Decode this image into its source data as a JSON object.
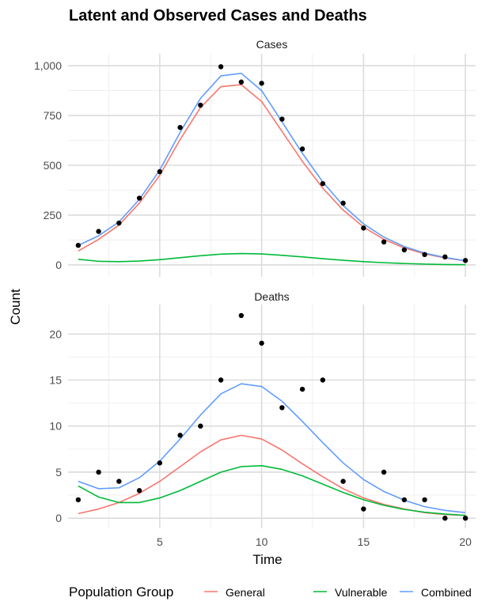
{
  "chart_data": {
    "type": "line",
    "title": "Latent and Observed Cases and Deaths",
    "xlabel": "Time",
    "ylabel": "Count",
    "xlim": [
      0.5,
      20.5
    ],
    "x_ticks": [
      5,
      10,
      15,
      20
    ],
    "x_tick_labels": [
      "5",
      "10",
      "15",
      "20"
    ],
    "x": [
      1,
      2,
      3,
      4,
      5,
      6,
      7,
      8,
      9,
      10,
      11,
      12,
      13,
      14,
      15,
      16,
      17,
      18,
      19,
      20
    ],
    "legend": {
      "title": "Population Group",
      "position": "bottom",
      "entries": [
        {
          "name": "General",
          "color": "#F8766D"
        },
        {
          "name": "Vulnerable",
          "color": "#00BA38"
        },
        {
          "name": "Combined",
          "color": "#619CFF"
        }
      ]
    },
    "panels": [
      {
        "name": "Cases",
        "ylim": [
          -60,
          1060
        ],
        "y_ticks": [
          0,
          250,
          500,
          750,
          1000
        ],
        "y_tick_labels": [
          "0",
          "250",
          "500",
          "750",
          "1,000"
        ],
        "series": [
          {
            "name": "General",
            "values": [
              70,
              128,
              200,
              310,
              450,
              630,
              790,
              895,
              905,
              820,
              670,
              520,
              385,
              275,
              190,
              128,
              85,
              55,
              35,
              20
            ]
          },
          {
            "name": "Vulnerable",
            "values": [
              28,
              18,
              16,
              19,
              26,
              36,
              46,
              54,
              57,
              55,
              48,
              40,
              31,
              23,
              16,
              11,
              7,
              4,
              2,
              1
            ]
          },
          {
            "name": "Combined",
            "values": [
              98,
              146,
              216,
              329,
              476,
              666,
              836,
              949,
              962,
              875,
              718,
              560,
              416,
              298,
              206,
              139,
              92,
              59,
              37,
              21
            ]
          }
        ],
        "observed": [
          98,
          168,
          210,
          335,
          468,
          690,
          802,
          995,
          918,
          912,
          732,
          582,
          408,
          310,
          185,
          115,
          75,
          52,
          40,
          22
        ]
      },
      {
        "name": "Deaths",
        "ylim": [
          -1.1,
          23.2
        ],
        "y_ticks": [
          0,
          5,
          10,
          15,
          20
        ],
        "y_tick_labels": [
          "0",
          "5",
          "10",
          "15",
          "20"
        ],
        "series": [
          {
            "name": "General",
            "values": [
              0.5,
              1.0,
              1.7,
              2.7,
              4.0,
              5.6,
              7.2,
              8.5,
              9.0,
              8.6,
              7.4,
              5.9,
              4.5,
              3.2,
              2.2,
              1.5,
              1.0,
              0.6,
              0.4,
              0.3
            ]
          },
          {
            "name": "Vulnerable",
            "values": [
              3.5,
              2.3,
              1.7,
              1.7,
              2.2,
              3.0,
              4.0,
              5.0,
              5.6,
              5.7,
              5.3,
              4.6,
              3.7,
              2.8,
              2.0,
              1.4,
              0.95,
              0.65,
              0.45,
              0.3
            ]
          },
          {
            "name": "Combined",
            "values": [
              4.0,
              3.2,
              3.3,
              4.4,
              6.2,
              8.6,
              11.2,
              13.5,
              14.6,
              14.3,
              12.7,
              10.5,
              8.2,
              6.0,
              4.2,
              2.9,
              1.95,
              1.25,
              0.85,
              0.6
            ]
          }
        ],
        "observed": [
          2,
          5,
          4,
          3,
          6,
          9,
          10,
          15,
          22,
          19,
          12,
          14,
          15,
          4,
          1,
          5,
          2,
          2,
          0,
          0
        ]
      }
    ]
  }
}
